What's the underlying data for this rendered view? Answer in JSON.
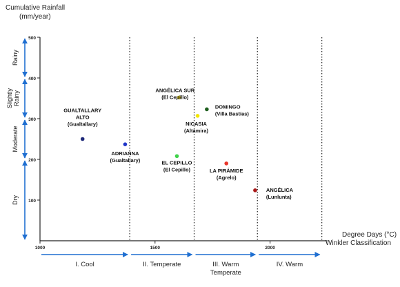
{
  "chart_data": {
    "type": "scatter",
    "ylabel_line1": "Cumulative Rainfall",
    "ylabel_line2": "(mm/year)",
    "xlabel_line1": "Degree Days (°C)",
    "xlabel_line2": "Winkler Classification",
    "xlim": [
      1000,
      2250
    ],
    "ylim": [
      0,
      500
    ],
    "x_ticks": [
      1000,
      1500,
      2000
    ],
    "y_ticks": [
      100,
      200,
      300,
      400,
      500
    ],
    "zone_boundaries": [
      1390,
      1670,
      1945,
      2225
    ],
    "zones": [
      {
        "label": "I. Cool",
        "label2": "",
        "from": 1000,
        "to": 1390
      },
      {
        "label": "II. Temperate",
        "label2": "",
        "from": 1390,
        "to": 1670
      },
      {
        "label": "III. Warm",
        "label2": "Temperate",
        "from": 1670,
        "to": 1945
      },
      {
        "label": "IV. Warm",
        "label2": "",
        "from": 1945,
        "to": 2225
      }
    ],
    "rain_categories": [
      {
        "label": "Rainy",
        "from": 400,
        "to": 500
      },
      {
        "label": "Slightly Rainy",
        "from": 300,
        "to": 400
      },
      {
        "label": "Moderate",
        "from": 200,
        "to": 300
      },
      {
        "label": "Dry",
        "from": 0,
        "to": 200
      }
    ],
    "points": [
      {
        "name": "GUALTALLARY ALTO",
        "sub": "(Gualtallary)",
        "x": 1185,
        "y": 250,
        "color": "#1f2a7a"
      },
      {
        "name": "ADRIANNA",
        "sub": "(Gualtallary)",
        "x": 1370,
        "y": 237,
        "color": "#1f35c8"
      },
      {
        "name": "ANGÉLICA SUR",
        "sub": "(El Cepillo)",
        "x": 1605,
        "y": 352,
        "color": "#c9b81a"
      },
      {
        "name": "EL CEPILLO",
        "sub": "(El Cepillo)",
        "x": 1595,
        "y": 208,
        "color": "#3fd24a"
      },
      {
        "name": "NICASIA",
        "sub": "(Altamira)",
        "x": 1685,
        "y": 307,
        "color": "#f2e600"
      },
      {
        "name": "DOMINGO",
        "sub": "(Villa Bastías)",
        "x": 1725,
        "y": 323,
        "color": "#1e5e1e"
      },
      {
        "name": "LA PIRÁMIDE",
        "sub": "(Agrelo)",
        "x": 1810,
        "y": 190,
        "color": "#e8352a"
      },
      {
        "name": "ANGÉLICA",
        "sub": "(Lunlunta)",
        "x": 1935,
        "y": 124,
        "color": "#a81818"
      }
    ]
  }
}
